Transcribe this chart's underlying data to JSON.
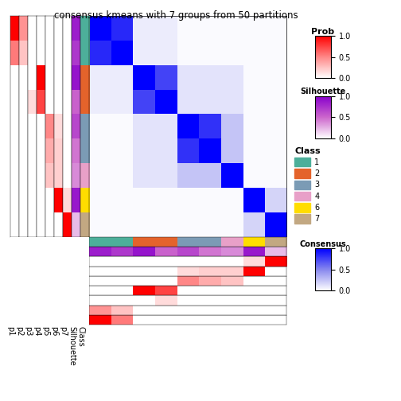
{
  "title": "consensus kmeans with 7 groups from 50 partitions",
  "n_groups": 7,
  "n_samples": 9,
  "sample_classes": [
    1,
    1,
    2,
    2,
    3,
    3,
    4,
    6,
    7
  ],
  "class_colors": {
    "1": "#4DAF9A",
    "2": "#E4632B",
    "3": "#7B9BB5",
    "4": "#E8A0C8",
    "6": "#FFDD00",
    "7": "#C2A882"
  },
  "prob_matrix": [
    [
      1.0,
      0.55,
      0.0,
      0.0,
      0.0,
      0.0,
      0.0,
      0.0,
      0.0
    ],
    [
      0.45,
      0.25,
      0.0,
      0.0,
      0.0,
      0.0,
      0.0,
      0.0,
      0.0
    ],
    [
      0.0,
      0.0,
      0.0,
      0.15,
      0.0,
      0.0,
      0.0,
      0.0,
      0.0
    ],
    [
      0.0,
      0.0,
      1.0,
      0.75,
      0.0,
      0.0,
      0.0,
      0.0,
      0.0
    ],
    [
      0.0,
      0.0,
      0.0,
      0.0,
      0.5,
      0.35,
      0.25,
      0.0,
      0.0
    ],
    [
      0.0,
      0.0,
      0.0,
      0.0,
      0.15,
      0.2,
      0.2,
      1.0,
      0.0
    ],
    [
      0.0,
      0.0,
      0.0,
      0.0,
      0.0,
      0.0,
      0.0,
      0.15,
      1.0
    ]
  ],
  "silhouette_values": [
    0.85,
    0.72,
    0.9,
    0.52,
    0.65,
    0.45,
    0.38,
    0.88,
    0.22
  ],
  "consensus_matrix": [
    [
      1.0,
      0.85,
      0.08,
      0.08,
      0.02,
      0.02,
      0.02,
      0.02,
      0.02
    ],
    [
      0.85,
      1.0,
      0.08,
      0.08,
      0.02,
      0.02,
      0.02,
      0.02,
      0.02
    ],
    [
      0.08,
      0.08,
      1.0,
      0.75,
      0.12,
      0.12,
      0.12,
      0.02,
      0.02
    ],
    [
      0.08,
      0.08,
      0.75,
      1.0,
      0.12,
      0.12,
      0.12,
      0.02,
      0.02
    ],
    [
      0.02,
      0.02,
      0.12,
      0.12,
      1.0,
      0.82,
      0.25,
      0.02,
      0.02
    ],
    [
      0.02,
      0.02,
      0.12,
      0.12,
      0.82,
      1.0,
      0.25,
      0.02,
      0.02
    ],
    [
      0.02,
      0.02,
      0.12,
      0.12,
      0.25,
      0.25,
      1.0,
      0.02,
      0.02
    ],
    [
      0.02,
      0.02,
      0.02,
      0.02,
      0.02,
      0.02,
      0.02,
      1.0,
      0.18
    ],
    [
      0.02,
      0.02,
      0.02,
      0.02,
      0.02,
      0.02,
      0.02,
      0.18,
      1.0
    ]
  ],
  "col_labels": [
    "p1",
    "p2",
    "p3",
    "p4",
    "p5",
    "p6",
    "p7",
    "Silhouette",
    "Class"
  ],
  "prob_cmap_colors": [
    "#FFFFFF",
    "#FF8888",
    "#FF0000"
  ],
  "sil_cmap_colors": [
    "#FFFFFF",
    "#CC66CC",
    "#8800CC"
  ],
  "cons_cmap_colors": [
    "#FFFFFF",
    "#8888EE",
    "#0000FF"
  ],
  "legend_prob_title": "Prob",
  "legend_sil_title": "Silhouette",
  "legend_class_title": "Class",
  "legend_cons_title": "Consensus",
  "class_legend_entries": [
    {
      "label": "1",
      "color": "#4DAF9A"
    },
    {
      "label": "2",
      "color": "#E4632B"
    },
    {
      "label": "3",
      "color": "#7B9BB5"
    },
    {
      "label": "4",
      "color": "#E8A0C8"
    },
    {
      "label": "6",
      "color": "#FFDD00"
    },
    {
      "label": "7",
      "color": "#C2A882"
    }
  ],
  "fig_width": 5.04,
  "fig_height": 5.04,
  "dpi": 100
}
